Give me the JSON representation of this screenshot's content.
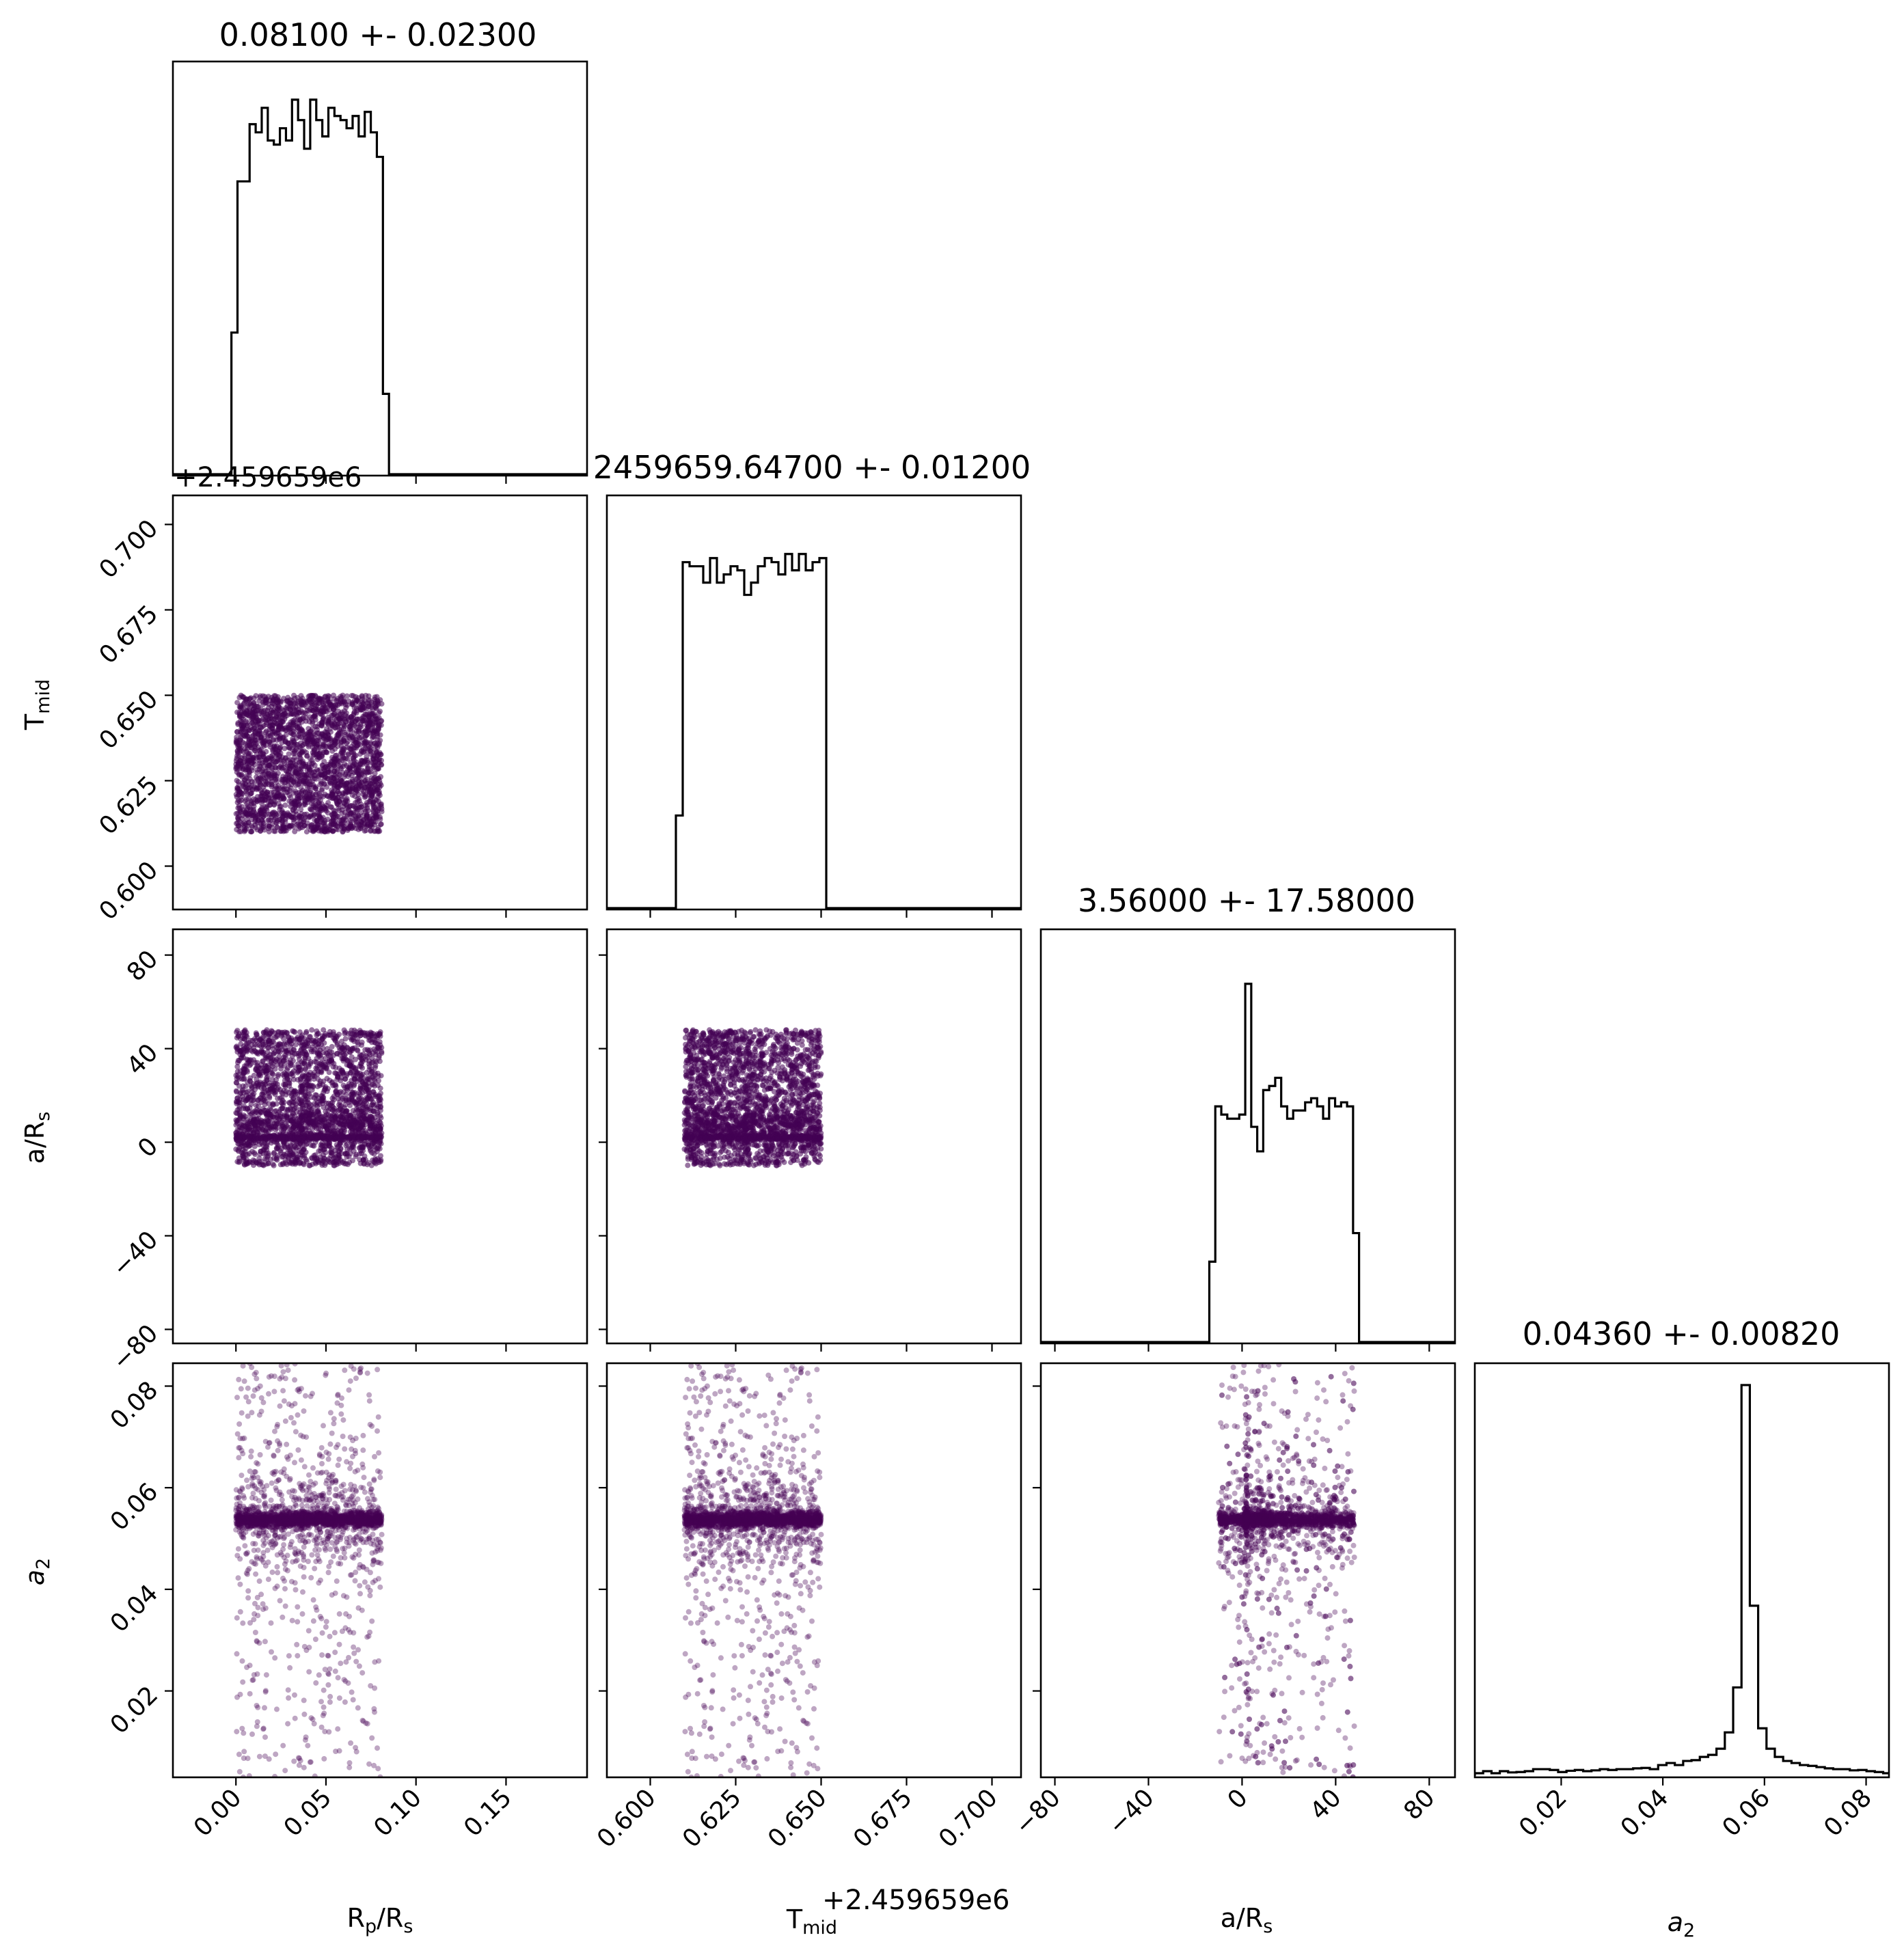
{
  "colors": {
    "hist": "#000000",
    "scatter": "#440154",
    "frame": "#000000",
    "background": "#ffffff"
  },
  "chart_data": {
    "type": "corner",
    "parameters": [
      {
        "label": "R_p/R_s",
        "title": "0.08100 +- 0.02300"
      },
      {
        "label": "T_mid",
        "title": "2459659.64700 +- 0.01200",
        "offset_text": "+2.459659e6"
      },
      {
        "label": "a/R_s",
        "title": "3.56000 +- 17.58000"
      },
      {
        "label": "a_2",
        "title": "0.04360 +- 0.00820"
      }
    ],
    "axis_labels": {
      "rp": {
        "base": "R",
        "sub": "p",
        "tail": "/R",
        "tail_sub": "s"
      },
      "tmid": {
        "base": "T",
        "sub": "mid"
      },
      "ars": {
        "base": "a/R",
        "sub": "s"
      },
      "a2": {
        "base": "a",
        "sub": "2"
      }
    },
    "axes": {
      "rp": {
        "range": [
          -0.035,
          0.195
        ],
        "ticks": [
          0.0,
          0.05,
          0.1,
          0.15
        ],
        "tick_labels": [
          "0.00",
          "0.05",
          "0.10",
          "0.15"
        ]
      },
      "tmid": {
        "range": [
          0.5873,
          0.7085
        ],
        "ticks": [
          0.6,
          0.625,
          0.65,
          0.675,
          0.7
        ],
        "tick_labels": [
          "0.600",
          "0.625",
          "0.650",
          "0.675",
          "0.700"
        ],
        "offset_text": "+2.459659e6"
      },
      "ars": {
        "range": [
          -86,
          91
        ],
        "ticks": [
          -80,
          -40,
          0,
          40,
          80
        ],
        "tick_labels": [
          "−80",
          "−40",
          "0",
          "40",
          "80"
        ]
      },
      "a2": {
        "range": [
          0.003,
          0.0845
        ],
        "ticks": [
          0.02,
          0.04,
          0.06,
          0.08
        ],
        "tick_labels": [
          "0.02",
          "0.04",
          "0.06",
          "0.08"
        ]
      }
    },
    "histograms": {
      "rp": {
        "edges": [
          -0.0025,
          0.085
        ],
        "counts": [
          0.35,
          0.72,
          0.72,
          0.86,
          0.84,
          0.9,
          0.82,
          0.81,
          0.85,
          0.82,
          0.92,
          0.87,
          0.8,
          0.92,
          0.87,
          0.83,
          0.9,
          0.88,
          0.87,
          0.85,
          0.88,
          0.83,
          0.89,
          0.84,
          0.78,
          0.2
        ]
      },
      "tmid": {
        "edges": [
          0.6075,
          0.6515
        ],
        "counts": [
          0.23,
          0.85,
          0.84,
          0.84,
          0.8,
          0.86,
          0.8,
          0.82,
          0.84,
          0.83,
          0.77,
          0.8,
          0.84,
          0.86,
          0.85,
          0.82,
          0.87,
          0.83,
          0.87,
          0.83,
          0.85,
          0.86
        ]
      },
      "ars": {
        "edges": [
          -14,
          50
        ],
        "counts": [
          0.2,
          0.58,
          0.56,
          0.55,
          0.55,
          0.56,
          0.88,
          0.53,
          0.47,
          0.62,
          0.63,
          0.65,
          0.58,
          0.55,
          0.57,
          0.57,
          0.59,
          0.6,
          0.58,
          0.55,
          0.6,
          0.58,
          0.59,
          0.58,
          0.27
        ]
      },
      "a2": {
        "edges": [
          0.003,
          0.085
        ],
        "counts": [
          0.01,
          0.015,
          0.01,
          0.015,
          0.012,
          0.013,
          0.015,
          0.02,
          0.02,
          0.018,
          0.013,
          0.016,
          0.018,
          0.015,
          0.017,
          0.02,
          0.018,
          0.02,
          0.02,
          0.022,
          0.023,
          0.02,
          0.03,
          0.035,
          0.03,
          0.04,
          0.042,
          0.05,
          0.055,
          0.07,
          0.11,
          0.22,
          0.96,
          0.42,
          0.12,
          0.07,
          0.05,
          0.04,
          0.035,
          0.03,
          0.028,
          0.025,
          0.022,
          0.02,
          0.02,
          0.017,
          0.018,
          0.015,
          0.013,
          0.01
        ]
      }
    },
    "sample_ranges": {
      "rp": [
        0.0,
        0.081
      ],
      "tmid": [
        0.61,
        0.65
      ],
      "ars": [
        -10,
        48
      ],
      "a2": [
        0.003,
        0.0845
      ]
    },
    "grid": false,
    "legend": "none"
  }
}
